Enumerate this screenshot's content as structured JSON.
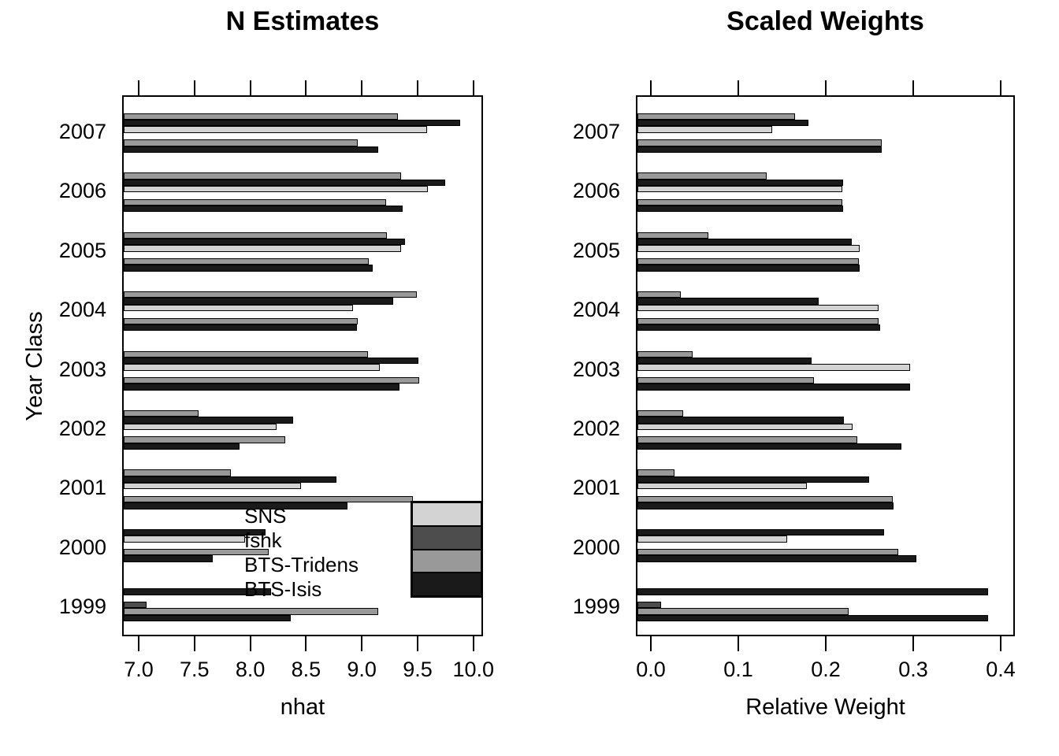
{
  "figure": {
    "background": "#ffffff"
  },
  "palette": {
    "LG": "#d3d3d3",
    "DG": "#4d4d4d",
    "MG": "#999999",
    "BK": "#1a1a1a",
    "bar_border": "#000000"
  },
  "legend": {
    "entries": [
      {
        "label": "SNS",
        "color": "LG"
      },
      {
        "label": "fshk",
        "color": "DG"
      },
      {
        "label": "BTS-Tridens",
        "color": "MG"
      },
      {
        "label": "BTS-Isis",
        "color": "BK"
      }
    ]
  },
  "chart_data": [
    {
      "type": "bar",
      "orientation": "horizontal",
      "title": "N Estimates",
      "xlabel": "nhat",
      "ylabel": "Year Class",
      "xlim": [
        6.85,
        10.08
      ],
      "xticks": [
        7.0,
        7.5,
        8.0,
        8.5,
        9.0,
        9.5,
        10.0
      ],
      "xtick_labels": [
        "7.0",
        "7.5",
        "8.0",
        "8.5",
        "9.0",
        "9.5",
        "10.0"
      ],
      "categories": [
        "2007",
        "2006",
        "2005",
        "2004",
        "2003",
        "2002",
        "2001",
        "2000",
        "1999"
      ],
      "grid": false,
      "top_axis_mirror_ticks": true,
      "groups": [
        {
          "year": "2007",
          "bars": [
            {
              "color": "MG",
              "value": 9.31
            },
            {
              "color": "BK",
              "value": 9.87
            },
            {
              "color": "LG",
              "value": 9.57
            },
            null,
            {
              "color": "MG",
              "value": 8.95
            },
            {
              "color": "BK",
              "value": 9.13
            }
          ]
        },
        {
          "year": "2006",
          "bars": [
            {
              "color": "MG",
              "value": 9.34
            },
            {
              "color": "BK",
              "value": 9.73
            },
            {
              "color": "LG",
              "value": 9.58
            },
            null,
            {
              "color": "MG",
              "value": 9.2
            },
            {
              "color": "BK",
              "value": 9.35
            }
          ]
        },
        {
          "year": "2005",
          "bars": [
            {
              "color": "MG",
              "value": 9.21
            },
            {
              "color": "BK",
              "value": 9.37
            },
            {
              "color": "LG",
              "value": 9.34
            },
            null,
            {
              "color": "MG",
              "value": 9.05
            },
            {
              "color": "BK",
              "value": 9.08
            }
          ]
        },
        {
          "year": "2004",
          "bars": [
            {
              "color": "MG",
              "value": 9.48
            },
            {
              "color": "BK",
              "value": 9.27
            },
            {
              "color": "LG",
              "value": 8.91
            },
            null,
            {
              "color": "MG",
              "value": 8.95
            },
            {
              "color": "BK",
              "value": 8.94
            }
          ]
        },
        {
          "year": "2003",
          "bars": [
            {
              "color": "MG",
              "value": 9.04
            },
            {
              "color": "BK",
              "value": 9.49
            },
            {
              "color": "LG",
              "value": 9.15
            },
            null,
            {
              "color": "MG",
              "value": 9.5
            },
            {
              "color": "BK",
              "value": 9.32
            }
          ]
        },
        {
          "year": "2002",
          "bars": [
            {
              "color": "MG",
              "value": 7.52
            },
            {
              "color": "BK",
              "value": 8.37
            },
            {
              "color": "LG",
              "value": 8.22
            },
            null,
            {
              "color": "MG",
              "value": 8.3
            },
            {
              "color": "BK",
              "value": 7.89
            }
          ]
        },
        {
          "year": "2001",
          "bars": [
            {
              "color": "MG",
              "value": 7.81
            },
            {
              "color": "BK",
              "value": 8.76
            },
            {
              "color": "LG",
              "value": 8.44
            },
            null,
            {
              "color": "MG",
              "value": 9.44
            },
            {
              "color": "BK",
              "value": 8.86
            }
          ]
        },
        {
          "year": "2000",
          "bars": [
            {
              "color": "BK",
              "value": 8.12
            },
            {
              "color": "LG",
              "value": 7.94
            },
            null,
            {
              "color": "MG",
              "value": 8.15
            },
            {
              "color": "BK",
              "value": 7.65
            },
            null
          ]
        },
        {
          "year": "1999",
          "bars": [
            {
              "color": "BK",
              "value": 8.17
            },
            null,
            {
              "color": "DG",
              "value": 7.06
            },
            {
              "color": "MG",
              "value": 9.13
            },
            {
              "color": "BK",
              "value": 8.35
            },
            null
          ]
        }
      ]
    },
    {
      "type": "bar",
      "orientation": "horizontal",
      "title": "Scaled Weights",
      "xlabel": "Relative Weight",
      "ylabel": "",
      "xlim": [
        -0.016,
        0.416
      ],
      "xticks": [
        0.0,
        0.1,
        0.2,
        0.3,
        0.4
      ],
      "xtick_labels": [
        "0.0",
        "0.1",
        "0.2",
        "0.3",
        "0.4"
      ],
      "categories": [
        "2007",
        "2006",
        "2005",
        "2004",
        "2003",
        "2002",
        "2001",
        "2000",
        "1999"
      ],
      "grid": false,
      "top_axis_mirror_ticks": true,
      "groups": [
        {
          "year": "2007",
          "bars": [
            {
              "color": "MG",
              "value": 0.163
            },
            {
              "color": "BK",
              "value": 0.178
            },
            {
              "color": "LG",
              "value": 0.137
            },
            null,
            {
              "color": "MG",
              "value": 0.262
            },
            {
              "color": "BK",
              "value": 0.262
            }
          ]
        },
        {
          "year": "2006",
          "bars": [
            {
              "color": "MG",
              "value": 0.131
            },
            {
              "color": "BK",
              "value": 0.218
            },
            {
              "color": "LG",
              "value": 0.217
            },
            null,
            {
              "color": "MG",
              "value": 0.217
            },
            {
              "color": "BK",
              "value": 0.218
            }
          ]
        },
        {
          "year": "2005",
          "bars": [
            {
              "color": "MG",
              "value": 0.064
            },
            {
              "color": "BK",
              "value": 0.228
            },
            {
              "color": "LG",
              "value": 0.237
            },
            null,
            {
              "color": "MG",
              "value": 0.236
            },
            {
              "color": "BK",
              "value": 0.237
            }
          ]
        },
        {
          "year": "2004",
          "bars": [
            {
              "color": "MG",
              "value": 0.032
            },
            {
              "color": "BK",
              "value": 0.19
            },
            {
              "color": "LG",
              "value": 0.259
            },
            null,
            {
              "color": "MG",
              "value": 0.259
            },
            {
              "color": "BK",
              "value": 0.26
            }
          ]
        },
        {
          "year": "2003",
          "bars": [
            {
              "color": "MG",
              "value": 0.046
            },
            {
              "color": "BK",
              "value": 0.182
            },
            {
              "color": "LG",
              "value": 0.295
            },
            null,
            {
              "color": "MG",
              "value": 0.185
            },
            {
              "color": "BK",
              "value": 0.295
            }
          ]
        },
        {
          "year": "2002",
          "bars": [
            {
              "color": "MG",
              "value": 0.035
            },
            {
              "color": "BK",
              "value": 0.219
            },
            {
              "color": "LG",
              "value": 0.229
            },
            null,
            {
              "color": "MG",
              "value": 0.234
            },
            {
              "color": "BK",
              "value": 0.285
            }
          ]
        },
        {
          "year": "2001",
          "bars": [
            {
              "color": "MG",
              "value": 0.025
            },
            {
              "color": "BK",
              "value": 0.248
            },
            {
              "color": "LG",
              "value": 0.177
            },
            null,
            {
              "color": "MG",
              "value": 0.275
            },
            {
              "color": "BK",
              "value": 0.276
            }
          ]
        },
        {
          "year": "2000",
          "bars": [
            {
              "color": "BK",
              "value": 0.265
            },
            {
              "color": "LG",
              "value": 0.154
            },
            null,
            {
              "color": "MG",
              "value": 0.281
            },
            {
              "color": "BK",
              "value": 0.302
            },
            null
          ]
        },
        {
          "year": "1999",
          "bars": [
            {
              "color": "BK",
              "value": 0.384
            },
            null,
            {
              "color": "DG",
              "value": 0.01
            },
            {
              "color": "MG",
              "value": 0.224
            },
            {
              "color": "BK",
              "value": 0.384
            },
            null
          ]
        }
      ]
    }
  ]
}
